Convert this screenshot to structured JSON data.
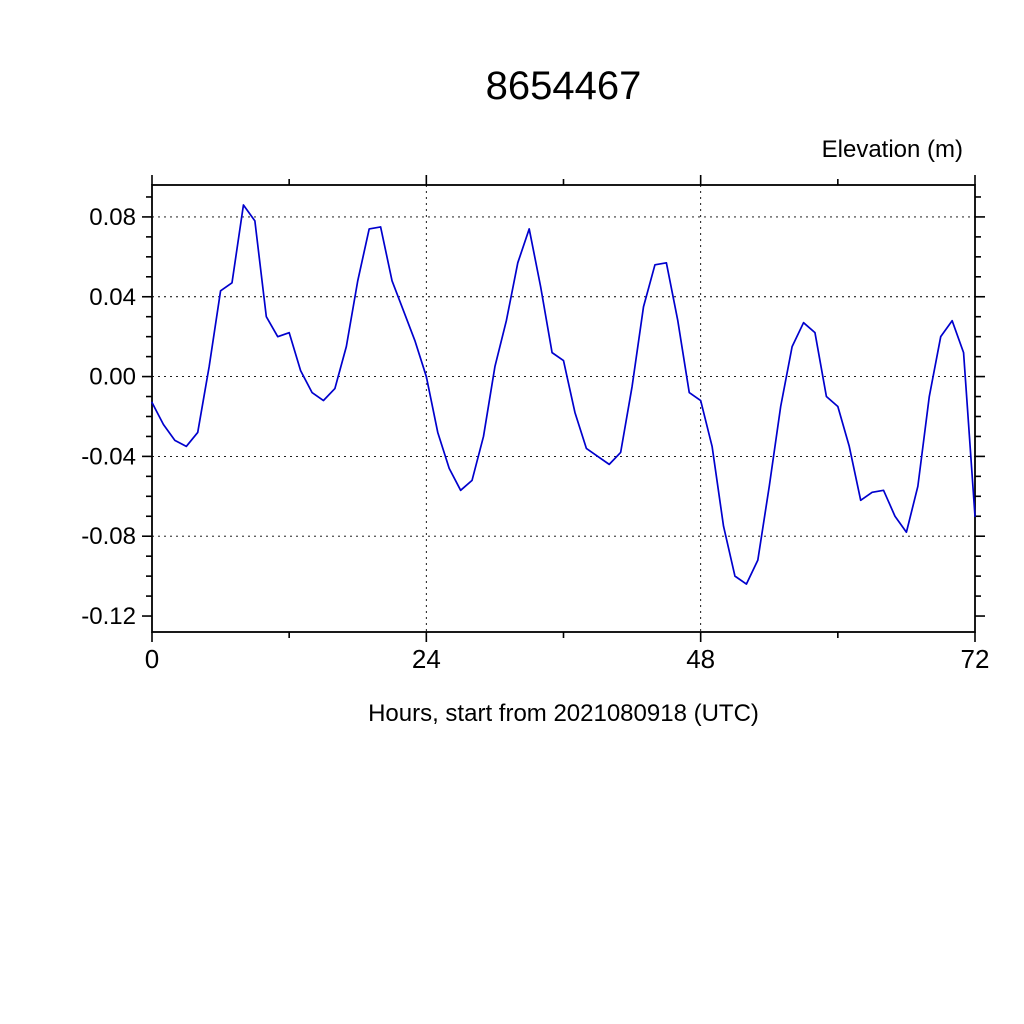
{
  "chart_data": {
    "type": "line",
    "title": "8654467",
    "ylabel": "Elevation (m)",
    "xlabel": "Hours, start from 2021080918 (UTC)",
    "series_name": "elevation",
    "x": [
      0,
      1,
      2,
      3,
      4,
      5,
      6,
      7,
      8,
      9,
      10,
      11,
      12,
      13,
      14,
      15,
      16,
      17,
      18,
      19,
      20,
      21,
      22,
      23,
      24,
      25,
      26,
      27,
      28,
      29,
      30,
      31,
      32,
      33,
      34,
      35,
      36,
      37,
      38,
      39,
      40,
      41,
      42,
      43,
      44,
      45,
      46,
      47,
      48,
      49,
      50,
      51,
      52,
      53,
      54,
      55,
      56,
      57,
      58,
      59,
      60,
      61,
      62,
      63,
      64,
      65,
      66,
      67,
      68,
      69,
      70,
      71,
      72
    ],
    "values": [
      -0.013,
      -0.024,
      -0.032,
      -0.035,
      -0.028,
      0.005,
      0.043,
      0.047,
      0.086,
      0.078,
      0.03,
      0.02,
      0.022,
      0.003,
      -0.008,
      -0.012,
      -0.006,
      0.015,
      0.048,
      0.074,
      0.075,
      0.048,
      0.033,
      0.018,
      0.0,
      -0.028,
      -0.046,
      -0.057,
      -0.052,
      -0.03,
      0.005,
      0.028,
      0.057,
      0.074,
      0.045,
      0.012,
      0.008,
      -0.018,
      -0.036,
      -0.04,
      -0.044,
      -0.038,
      -0.005,
      0.035,
      0.056,
      0.057,
      0.028,
      -0.008,
      -0.012,
      -0.035,
      -0.075,
      -0.1,
      -0.104,
      -0.092,
      -0.055,
      -0.015,
      0.015,
      0.027,
      0.022,
      -0.01,
      -0.015,
      -0.035,
      -0.062,
      -0.058,
      -0.057,
      -0.07,
      -0.078,
      -0.055,
      -0.01,
      0.02,
      0.028,
      0.012,
      -0.07
    ],
    "xlim": [
      0,
      72
    ],
    "ylim": [
      -0.128,
      0.096
    ],
    "xticks": [
      0,
      24,
      48,
      72
    ],
    "yticks": [
      0.08,
      0.04,
      0,
      -0.04,
      -0.08,
      -0.12
    ],
    "xtick_major": 24,
    "xtick_minor": 12,
    "ytick_major": 0.04,
    "ytick_minor": 0.01,
    "grid_x": [
      24,
      48
    ],
    "grid_y": [
      0.08,
      0.04,
      0,
      -0.04,
      -0.08
    ],
    "grid_on": true,
    "legend": "none",
    "line_color": "#0000CD",
    "axis_color": "#000000"
  }
}
